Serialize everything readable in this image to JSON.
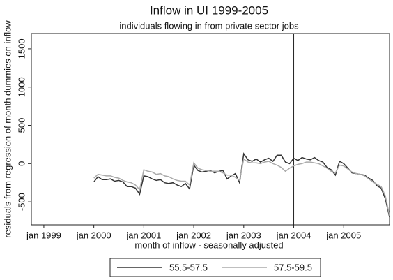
{
  "chart_data": {
    "type": "line",
    "title": "Inflow in UI 1999-2005",
    "subtitle": "individuals flowing in from private sector jobs",
    "x_label": "month of inflow - seasonally adjusted",
    "y_label": "residuals from regression of month dummies on inflow",
    "x": [
      "2000-01",
      "2000-02",
      "2000-03",
      "2000-04",
      "2000-05",
      "2000-06",
      "2000-07",
      "2000-08",
      "2000-09",
      "2000-10",
      "2000-11",
      "2000-12",
      "2001-01",
      "2001-02",
      "2001-03",
      "2001-04",
      "2001-05",
      "2001-06",
      "2001-07",
      "2001-08",
      "2001-09",
      "2001-10",
      "2001-11",
      "2001-12",
      "2002-01",
      "2002-02",
      "2002-03",
      "2002-04",
      "2002-05",
      "2002-06",
      "2002-07",
      "2002-08",
      "2002-09",
      "2002-10",
      "2002-11",
      "2002-12",
      "2003-01",
      "2003-02",
      "2003-03",
      "2003-04",
      "2003-05",
      "2003-06",
      "2003-07",
      "2003-08",
      "2003-09",
      "2003-10",
      "2003-11",
      "2003-12",
      "2004-01",
      "2004-02",
      "2004-03",
      "2004-04",
      "2004-05",
      "2004-06",
      "2004-07",
      "2004-08",
      "2004-09",
      "2004-10",
      "2004-11",
      "2004-12",
      "2005-01",
      "2005-02",
      "2005-03",
      "2005-04",
      "2005-05",
      "2005-06",
      "2005-07",
      "2005-08",
      "2005-09",
      "2005-10",
      "2005-11",
      "2005-12"
    ],
    "series": [
      {
        "name": "55.5-57.5",
        "color": "#333333",
        "values": [
          -240,
          -170,
          -210,
          -210,
          -200,
          -230,
          -220,
          -240,
          -300,
          -300,
          -320,
          -400,
          -160,
          -170,
          -200,
          -220,
          -210,
          -250,
          -260,
          -250,
          -280,
          -300,
          -260,
          -330,
          -20,
          -90,
          -110,
          -100,
          -90,
          -120,
          -100,
          -90,
          -200,
          -160,
          -130,
          -250,
          130,
          50,
          30,
          60,
          20,
          50,
          70,
          30,
          110,
          110,
          20,
          0,
          70,
          40,
          80,
          60,
          50,
          80,
          40,
          20,
          -50,
          -80,
          -150,
          30,
          0,
          -60,
          -120,
          -130,
          -140,
          -150,
          -190,
          -220,
          -290,
          -320,
          -460,
          -700
        ]
      },
      {
        "name": "57.5-59.5",
        "color": "#aaaaaa",
        "values": [
          -190,
          -140,
          -150,
          -160,
          -160,
          -180,
          -190,
          -220,
          -240,
          -250,
          -280,
          -340,
          -80,
          -100,
          -110,
          -140,
          -130,
          -160,
          -170,
          -200,
          -220,
          -230,
          -230,
          -280,
          10,
          -60,
          -80,
          -90,
          -100,
          -100,
          -100,
          -120,
          -150,
          -150,
          -180,
          -220,
          60,
          20,
          10,
          10,
          0,
          20,
          30,
          0,
          -20,
          -50,
          -100,
          -60,
          -30,
          -10,
          0,
          20,
          20,
          10,
          0,
          -30,
          -60,
          -100,
          -120,
          -20,
          -30,
          -70,
          -110,
          -130,
          -140,
          -160,
          -200,
          -240,
          -270,
          -300,
          -420,
          -680
        ]
      }
    ],
    "xlim": [
      "1998-10",
      "2005-12"
    ],
    "xticks": [
      {
        "value": "1999-01",
        "label": "jan 1999"
      },
      {
        "value": "2000-01",
        "label": "jan 2000"
      },
      {
        "value": "2001-01",
        "label": "jan 2001"
      },
      {
        "value": "2002-01",
        "label": "jan 2002"
      },
      {
        "value": "2003-01",
        "label": "jan 2003"
      },
      {
        "value": "2004-01",
        "label": "jan 2004"
      },
      {
        "value": "2005-01",
        "label": "jan 2005"
      }
    ],
    "ylim": [
      -800,
      1700
    ],
    "yticks": [
      -500,
      0,
      500,
      1000,
      1500
    ],
    "vline": "2004-01",
    "legend": "bottom"
  }
}
